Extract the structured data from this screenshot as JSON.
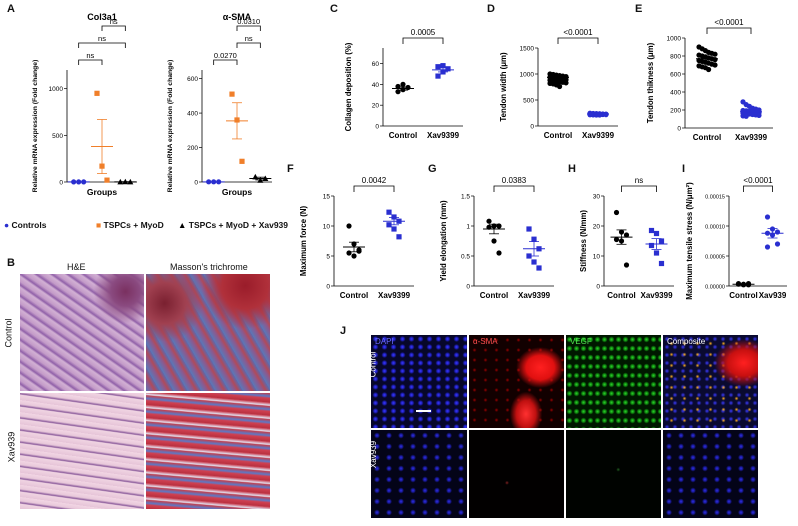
{
  "panel_letters": [
    "A",
    "B",
    "C",
    "D",
    "E",
    "F",
    "G",
    "H",
    "I",
    "J"
  ],
  "legend": [
    {
      "label": "Controls",
      "marker": "circle",
      "color": "#2a2fd0"
    },
    {
      "label": "TSPCs + MyoD",
      "marker": "square",
      "color": "#f07f2a"
    },
    {
      "label": "TSPCs + MyoD + Xav939",
      "marker": "triangle",
      "color": "#000000"
    }
  ],
  "histology": {
    "col_headers": [
      "H&E",
      "Masson's trichrome"
    ],
    "row_labels": [
      "Control",
      "Xav939"
    ]
  },
  "fluorescence": {
    "col_headers": [
      "DAPI",
      "α-SMA",
      "VEGF",
      "Composite"
    ],
    "row_labels": [
      "Control",
      "Xav939"
    ]
  },
  "chart_data": [
    {
      "id": "A1",
      "type": "scatter",
      "title": "Col3a1",
      "ylabel": "Relative mRNA expression (Fold change)",
      "xlabel": "Groups",
      "ylim": [
        0,
        1200
      ],
      "yticks": [
        0,
        500,
        1000
      ],
      "groups": [
        {
          "name": "Controls",
          "color": "#2a2fd0",
          "marker": "circle",
          "values": [
            1,
            1,
            1
          ],
          "mean": 1,
          "sem": 0
        },
        {
          "name": "TSPCs + MyoD",
          "color": "#f07f2a",
          "marker": "square",
          "values": [
            950,
            170,
            20
          ],
          "mean": 380,
          "sem": 290
        },
        {
          "name": "TSPCs + MyoD + Xav939",
          "color": "#000000",
          "marker": "triangle",
          "values": [
            2,
            3,
            1
          ],
          "mean": 2,
          "sem": 1
        }
      ],
      "brackets": [
        {
          "from": 0,
          "to": 1,
          "label": "ns",
          "level": 0
        },
        {
          "from": 0,
          "to": 2,
          "label": "ns",
          "level": 1
        },
        {
          "from": 1,
          "to": 2,
          "label": "ns",
          "level": 2
        }
      ]
    },
    {
      "id": "A2",
      "type": "scatter",
      "title": "α-SMA",
      "ylabel": "Relative mRNA expression (Fold change)",
      "xlabel": "Groups",
      "ylim": [
        0,
        650
      ],
      "yticks": [
        0,
        200,
        400,
        600
      ],
      "groups": [
        {
          "name": "Controls",
          "color": "#2a2fd0",
          "marker": "circle",
          "values": [
            1,
            1,
            1
          ],
          "mean": 1,
          "sem": 0
        },
        {
          "name": "TSPCs + MyoD",
          "color": "#f07f2a",
          "marker": "square",
          "values": [
            510,
            360,
            120
          ],
          "mean": 355,
          "sem": 105
        },
        {
          "name": "TSPCs + MyoD + Xav939",
          "color": "#000000",
          "marker": "triangle",
          "values": [
            30,
            10,
            20
          ],
          "mean": 20,
          "sem": 8
        }
      ],
      "brackets": [
        {
          "from": 0,
          "to": 1,
          "label": "0.0270",
          "level": 0
        },
        {
          "from": 1,
          "to": 2,
          "label": "ns",
          "level": 1
        },
        {
          "from": 1,
          "to": 2,
          "label": "0.0310",
          "level": 2
        }
      ]
    },
    {
      "id": "C",
      "type": "scatter",
      "ylabel": "Collagen deposition (%)",
      "categories": [
        "Control",
        "Xav9399"
      ],
      "ylim": [
        0,
        75
      ],
      "yticks": [
        0,
        20,
        40,
        60
      ],
      "p": "0.0005",
      "groups": [
        {
          "color": "#000000",
          "marker": "circle",
          "values": [
            33,
            35,
            37,
            38,
            40
          ],
          "mean": 36,
          "sem": 1.5
        },
        {
          "color": "#2a2fd0",
          "marker": "square",
          "values": [
            48,
            52,
            55,
            57,
            58
          ],
          "mean": 54,
          "sem": 2
        }
      ]
    },
    {
      "id": "D",
      "type": "scatter",
      "ylabel": "Tendon width (μm)",
      "categories": [
        "Control",
        "Xav9399"
      ],
      "ylim": [
        0,
        1500
      ],
      "yticks": [
        0,
        500,
        1000,
        1500
      ],
      "p": "<0.0001",
      "groups": [
        {
          "color": "#000000",
          "marker": "circle",
          "values": [
            1000,
            990,
            980,
            970,
            960,
            950,
            940,
            930,
            920,
            910,
            900,
            890,
            880,
            870,
            860,
            850,
            840,
            830,
            820,
            810,
            790,
            760
          ],
          "mean": 930,
          "sem": 15
        },
        {
          "color": "#2a2fd0",
          "marker": "circle",
          "values": [
            245,
            240,
            238,
            235,
            232,
            230,
            228,
            226,
            224,
            222,
            220,
            218,
            216,
            214,
            212,
            210
          ],
          "mean": 230,
          "sem": 4
        }
      ]
    },
    {
      "id": "E",
      "type": "scatter",
      "ylabel": "Tendon thikness (μm)",
      "categories": [
        "Control",
        "Xav9399"
      ],
      "ylim": [
        0,
        1000
      ],
      "yticks": [
        0,
        200,
        400,
        600,
        800,
        1000
      ],
      "p": "<0.0001",
      "groups": [
        {
          "color": "#000000",
          "marker": "circle",
          "values": [
            900,
            880,
            860,
            840,
            830,
            820,
            810,
            800,
            790,
            780,
            770,
            760,
            750,
            740,
            730,
            720,
            710,
            700,
            690,
            680,
            670,
            650
          ],
          "mean": 770,
          "sem": 15
        },
        {
          "color": "#2a2fd0",
          "marker": "circle",
          "values": [
            290,
            260,
            240,
            220,
            210,
            200,
            195,
            190,
            185,
            180,
            175,
            170,
            165,
            160,
            155,
            150,
            145,
            140,
            135,
            130
          ],
          "mean": 180,
          "sem": 8
        }
      ]
    },
    {
      "id": "F",
      "type": "scatter",
      "ylabel": "Maximum force (N)",
      "categories": [
        "Control",
        "Xav9399"
      ],
      "ylim": [
        0,
        15
      ],
      "yticks": [
        0,
        5,
        10,
        15
      ],
      "p": "0.0042",
      "groups": [
        {
          "color": "#000000",
          "marker": "circle",
          "values": [
            10,
            7,
            6,
            5.5,
            5,
            5.8
          ],
          "mean": 6.5,
          "sem": 0.8
        },
        {
          "color": "#2a2fd0",
          "marker": "square",
          "values": [
            12.3,
            11.5,
            10.8,
            10.2,
            9.5,
            8.2
          ],
          "mean": 10.8,
          "sem": 0.6
        }
      ]
    },
    {
      "id": "G",
      "type": "scatter",
      "ylabel": "Yield elongation (mm)",
      "categories": [
        "Control",
        "Xav9399"
      ],
      "ylim": [
        0,
        1.5
      ],
      "yticks": [
        0,
        0.5,
        1.0,
        1.5
      ],
      "p": "0.0383",
      "groups": [
        {
          "color": "#000000",
          "marker": "circle",
          "values": [
            1.08,
            1.0,
            1.0,
            0.98,
            0.75,
            0.55
          ],
          "mean": 0.95,
          "sem": 0.08
        },
        {
          "color": "#2a2fd0",
          "marker": "square",
          "values": [
            0.95,
            0.78,
            0.62,
            0.5,
            0.4,
            0.3
          ],
          "mean": 0.62,
          "sem": 0.12
        }
      ]
    },
    {
      "id": "H",
      "type": "scatter",
      "ylabel": "Stiffness (N/mm)",
      "categories": [
        "Control",
        "Xav9399"
      ],
      "ylim": [
        0,
        30
      ],
      "yticks": [
        0,
        10,
        20,
        30
      ],
      "p": "ns",
      "groups": [
        {
          "color": "#000000",
          "marker": "circle",
          "values": [
            24.5,
            18,
            17,
            15.5,
            15,
            7
          ],
          "mean": 16.3,
          "sem": 2.4
        },
        {
          "color": "#2a2fd0",
          "marker": "square",
          "values": [
            18.5,
            17.5,
            15,
            13.5,
            11,
            7.5
          ],
          "mean": 14,
          "sem": 1.8
        }
      ]
    },
    {
      "id": "I",
      "type": "scatter",
      "ylabel": "Maximum tensile stress (N/μm²)",
      "categories": [
        "Control",
        "Xav939"
      ],
      "ylim": [
        0,
        0.00015
      ],
      "yticks": [
        0,
        5e-05,
        0.0001,
        0.00015
      ],
      "ytick_labels": [
        "0.00000",
        "0.00005",
        "0.00010",
        "0.00015"
      ],
      "p": "<0.0001",
      "groups": [
        {
          "color": "#000000",
          "marker": "circle",
          "values": [
            4e-06,
            3e-06,
            2e-06,
            3e-06,
            2e-06,
            4e-06
          ],
          "mean": 3e-06,
          "sem": 5e-07
        },
        {
          "color": "#2a2fd0",
          "marker": "circle",
          "values": [
            0.000115,
            9.5e-05,
            9e-05,
            8.8e-05,
            8.5e-05,
            7e-05,
            6.5e-05
          ],
          "mean": 8.8e-05,
          "sem": 8e-06
        }
      ]
    }
  ]
}
